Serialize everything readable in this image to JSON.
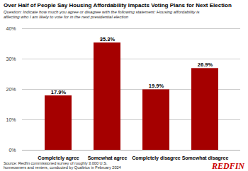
{
  "chart_data": {
    "type": "bar",
    "title": "Over Half of People Say Housing Affordability Impacts Voting Plans for Next Election",
    "subtitle": "Question: Indicate how much you agree or disagree with the following statement: Housing affordability is\naffecting who I am likely to vote for in the next presidential election",
    "categories": [
      "Completely agree",
      "Somewhat agree",
      "Completely disagree",
      "Somewhat disagree"
    ],
    "values": [
      17.9,
      35.3,
      19.9,
      26.9
    ],
    "value_labels": [
      "17.9%",
      "35.3%",
      "19.9%",
      "26.9%"
    ],
    "data_labels": true,
    "color": "#A50000",
    "ylim": [
      0,
      40
    ],
    "yticks": [
      {
        "value": 0,
        "label": "0%"
      },
      {
        "value": 10,
        "label": "10%"
      },
      {
        "value": 20,
        "label": "20%"
      },
      {
        "value": 30,
        "label": "30%"
      },
      {
        "value": 40,
        "label": "40%"
      }
    ],
    "grid": true,
    "annotations": [
      {
        "text": "Source: Redfin commissioned survey of roughly 3,000 U.S.\nhomeowners and renters, conducted by Qualtrics in February 2024"
      },
      {
        "text": "REDFIN",
        "color": "#CC0000"
      }
    ]
  }
}
